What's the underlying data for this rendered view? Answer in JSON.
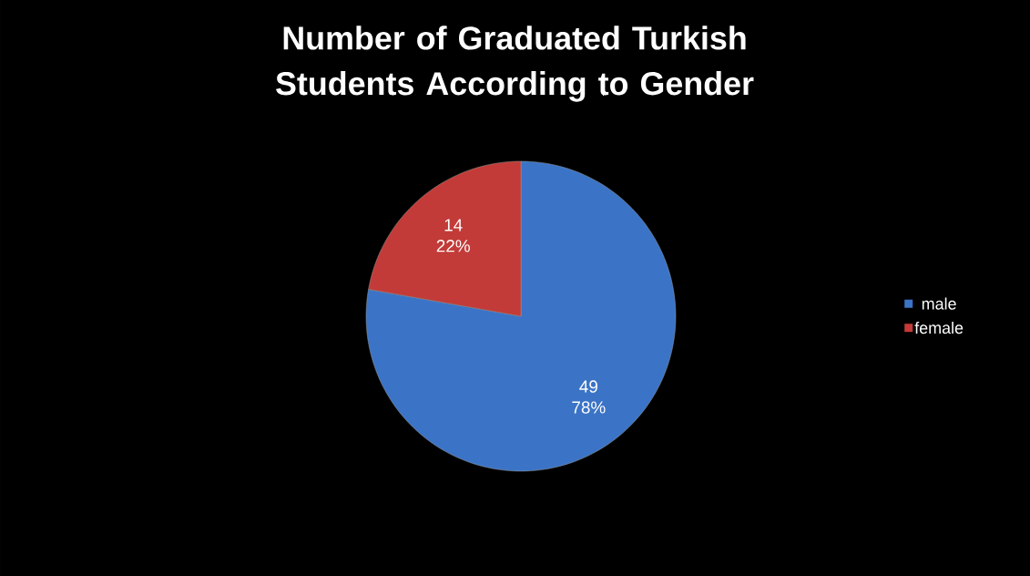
{
  "chart_data": {
    "type": "pie",
    "title": "Number of Graduated Turkish Students According to Gender",
    "categories": [
      "male",
      "female"
    ],
    "values": [
      49,
      14
    ],
    "colors": [
      "#3b74c6",
      "#c23b38"
    ],
    "value_labels": [
      "49 78%",
      "14 22%"
    ],
    "legend": "right"
  }
}
